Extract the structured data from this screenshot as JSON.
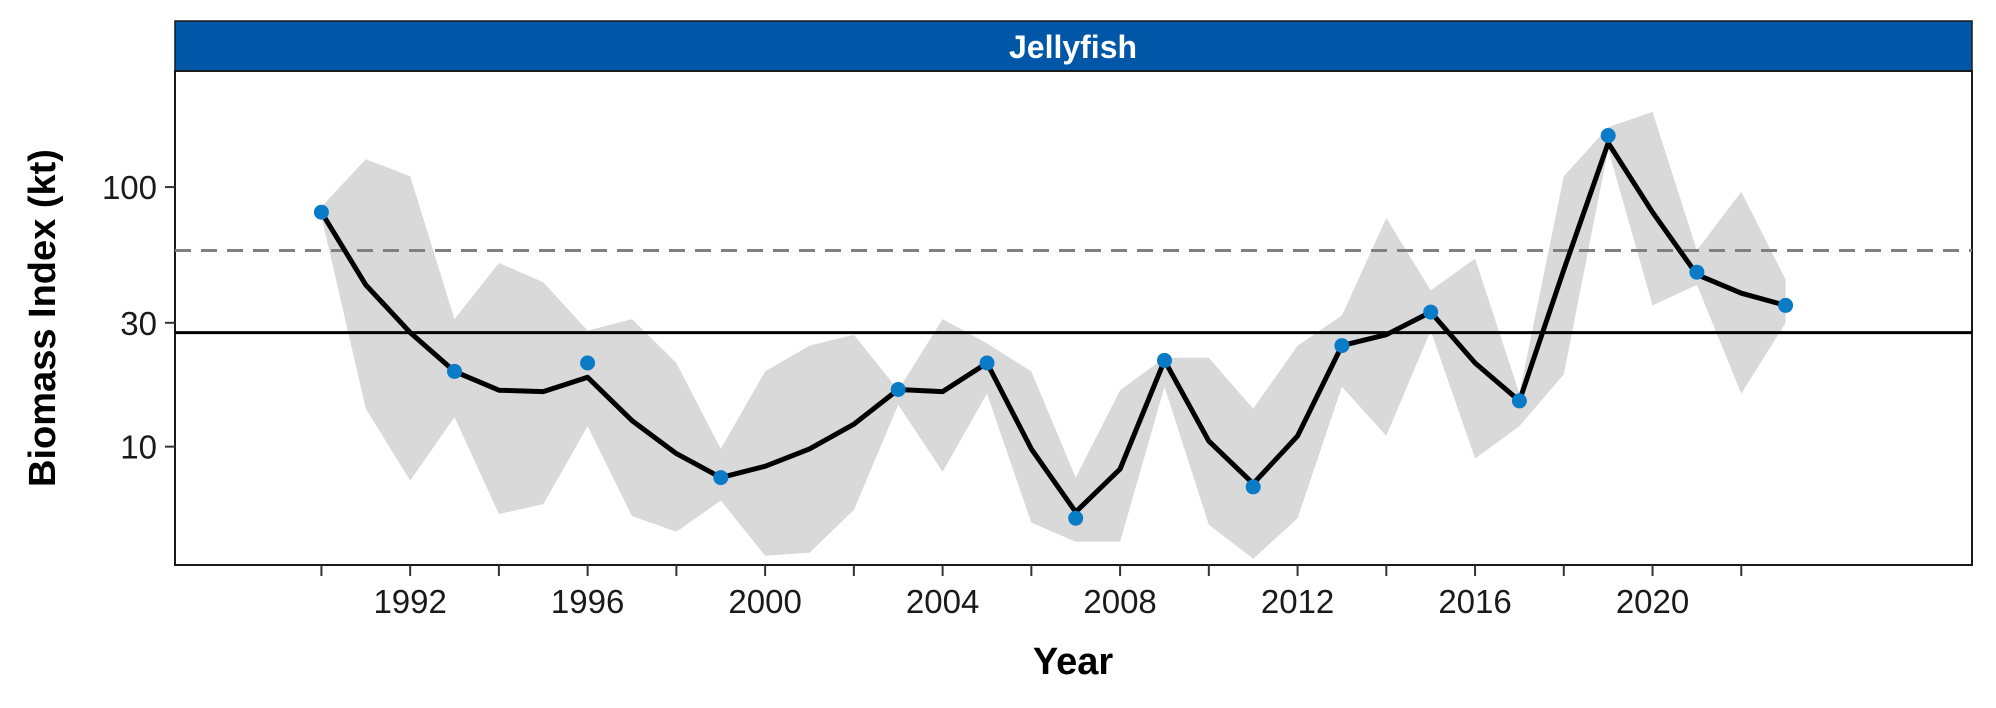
{
  "chart_data": {
    "type": "line",
    "panel_title": "Jellyfish",
    "xlabel": "Year",
    "ylabel": "Biomass Index (kt)",
    "y_scale": "log",
    "ylim": [
      3.5,
      280
    ],
    "xlim": [
      1986.7,
      2027.2
    ],
    "x_ticks": [
      1992,
      1996,
      2000,
      2004,
      2008,
      2012,
      2016,
      2020
    ],
    "x_minor_ticks": [
      1990,
      1994,
      1998,
      2002,
      2006,
      2010,
      2014,
      2018,
      2022
    ],
    "y_ticks": [
      10,
      30,
      100
    ],
    "grid": false,
    "reference_lines": {
      "solid": 27.5,
      "dashed": 57
    },
    "series": [
      {
        "type": "band",
        "x": [
          1990,
          1991,
          1992,
          1993,
          1994,
          1995,
          1996,
          1997,
          1998,
          1999,
          2000,
          2001,
          2002,
          2003,
          2004,
          2005,
          2006,
          2007,
          2008,
          2009,
          2010,
          2011,
          2012,
          2013,
          2014,
          2015,
          2016,
          2017,
          2018,
          2019,
          2020,
          2021,
          2022,
          2023
        ],
        "lower": [
          77,
          14,
          7.4,
          13,
          5.5,
          6.0,
          12,
          5.4,
          4.7,
          6.2,
          3.8,
          3.9,
          5.7,
          14.5,
          8.0,
          16,
          5.1,
          4.3,
          4.3,
          17,
          5.0,
          3.7,
          5.3,
          17,
          11,
          28,
          9.0,
          12,
          19,
          140,
          35,
          42,
          16,
          30
        ],
        "upper": [
          84,
          128,
          110,
          31,
          51,
          43,
          28,
          31,
          21,
          9.8,
          19.5,
          24.5,
          27,
          16.5,
          31,
          25,
          19.5,
          7.6,
          16.5,
          22,
          22,
          14,
          24.5,
          32,
          76,
          40,
          53,
          16,
          110,
          170,
          195,
          57,
          96,
          44
        ]
      },
      {
        "type": "line",
        "x": [
          1990,
          1991,
          1992,
          1993,
          1994,
          1995,
          1996,
          1997,
          1998,
          1999,
          2000,
          2001,
          2002,
          2003,
          2004,
          2005,
          2006,
          2007,
          2008,
          2009,
          2010,
          2011,
          2012,
          2013,
          2014,
          2015,
          2016,
          2017,
          2018,
          2019,
          2020,
          2021,
          2022,
          2023
        ],
        "y": [
          80,
          42,
          27.5,
          19.5,
          16.5,
          16.3,
          18.5,
          12.6,
          9.4,
          7.6,
          8.4,
          9.8,
          12.2,
          16.6,
          16.3,
          21,
          9.8,
          5.6,
          8.2,
          21.5,
          10.5,
          7.2,
          11,
          24.5,
          27,
          33,
          21,
          15,
          48,
          148,
          80,
          46,
          39,
          35
        ]
      },
      {
        "type": "points",
        "x": [
          1990,
          1993,
          1996,
          1999,
          2003,
          2005,
          2007,
          2009,
          2011,
          2013,
          2015,
          2017,
          2019,
          2021,
          2023
        ],
        "y": [
          80,
          19.5,
          21,
          7.6,
          16.6,
          21,
          5.3,
          21.5,
          7.0,
          24.5,
          33,
          15,
          158,
          47,
          35
        ]
      }
    ],
    "colors": {
      "strip": "#0057A8",
      "band": "#D9D9D9",
      "line": "#000000",
      "points": "#0A7CC7",
      "dashed_line": "#808080",
      "solid_line": "#000000"
    }
  }
}
